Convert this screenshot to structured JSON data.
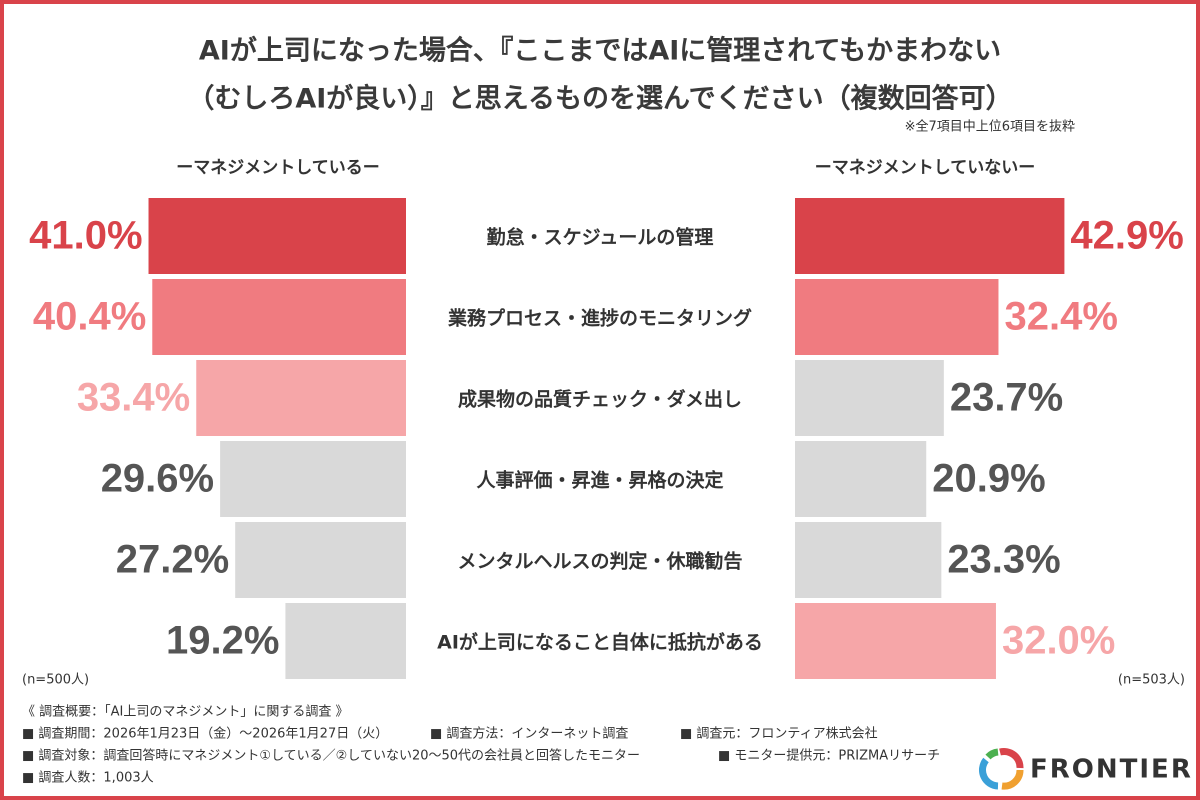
{
  "chart_data": {
    "type": "butterfly",
    "title": [
      "AIが上司になった場合、『ここまではAIに管理されてもかまわない",
      "（むしろAIが良い）』と思えるものを選んでください（複数回答可）"
    ],
    "note": "※全7項目中上位6項目を抜粋",
    "categories": [
      "勤怠・スケジュールの管理",
      "業務プロセス・進捗のモニタリング",
      "成果物の品質チェック・ダメ出し",
      "人事評価・昇進・昇格の決定",
      "メンタルヘルスの判定・休職勧告",
      "AIが上司になること自体に抵抗がある"
    ],
    "series": [
      {
        "name": "ーマネジメントしているー",
        "sample": "(n=500人)",
        "values": [
          41.0,
          40.4,
          33.4,
          29.6,
          27.2,
          19.2
        ],
        "value_labels": [
          "41.0%",
          "40.4%",
          "33.4%",
          "29.6%",
          "27.2%",
          "19.2%"
        ],
        "colors": [
          "#d9434a",
          "#f07b80",
          "#f6a6a8",
          "#d9d9d9",
          "#d9d9d9",
          "#d9d9d9"
        ],
        "label_colors": [
          "#d9434a",
          "#f07b80",
          "#f6a6a8",
          "#555555",
          "#555555",
          "#555555"
        ]
      },
      {
        "name": "ーマネジメントしていないー",
        "sample": "(n=503人)",
        "values": [
          42.9,
          32.4,
          23.7,
          20.9,
          23.3,
          32.0
        ],
        "value_labels": [
          "42.9%",
          "32.4%",
          "23.7%",
          "20.9%",
          "23.3%",
          "32.0%"
        ],
        "colors": [
          "#d9434a",
          "#f07b80",
          "#d9d9d9",
          "#d9d9d9",
          "#d9d9d9",
          "#f6a6a8"
        ],
        "label_colors": [
          "#d9434a",
          "#f07b80",
          "#555555",
          "#555555",
          "#555555",
          "#f6a6a8"
        ]
      }
    ]
  },
  "footer": {
    "heading": "《 調査概要：「AI上司のマネジメント」に関する調査 》",
    "items": [
      "■ 調査期間：2026年1月23日（金）〜2026年1月27日（火）",
      "■ 調査方法：インターネット調査",
      "■ 調査元：フロンティア株式会社",
      "■ 調査対象：調査回答時にマネジメント①している／②していない20〜50代の会社員と回答したモニター",
      "■ モニター提供元：PRIZMAリサーチ",
      "■ 調査人数：1,003人"
    ]
  },
  "logo": "FRONTIER"
}
